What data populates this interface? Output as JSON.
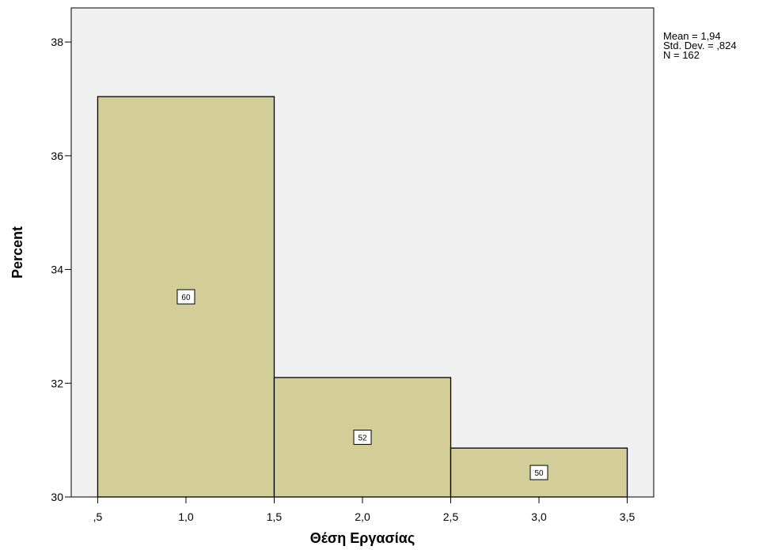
{
  "chart_data": {
    "type": "bar",
    "title": "",
    "xlabel": "Θέση Εργασίας",
    "ylabel": "Percent",
    "ylim": [
      30,
      38.6
    ],
    "xlim": [
      0.35,
      3.65
    ],
    "y_ticks": [
      30,
      32,
      34,
      36,
      38
    ],
    "y_tick_labels": [
      "30",
      "32",
      "34",
      "36",
      "38"
    ],
    "x_ticks": [
      0.5,
      1.0,
      1.5,
      2.0,
      2.5,
      3.0,
      3.5
    ],
    "x_tick_labels": [
      ",5",
      "1,0",
      "1,5",
      "2,0",
      "2,5",
      "3,0",
      "3,5"
    ],
    "bins": [
      {
        "start": 0.5,
        "end": 1.5,
        "percent": 37.04,
        "count": "60"
      },
      {
        "start": 1.5,
        "end": 2.5,
        "percent": 32.1,
        "count": "52"
      },
      {
        "start": 2.5,
        "end": 3.5,
        "percent": 30.86,
        "count": "50"
      }
    ],
    "stats": [
      "Mean = 1,94",
      "Std. Dev. = ,824",
      "N = 162"
    ],
    "grid": false,
    "colors": {
      "bar_fill": "#d3ce97",
      "bar_stroke": "#000000",
      "plot_background": "#f0f0f0"
    }
  }
}
